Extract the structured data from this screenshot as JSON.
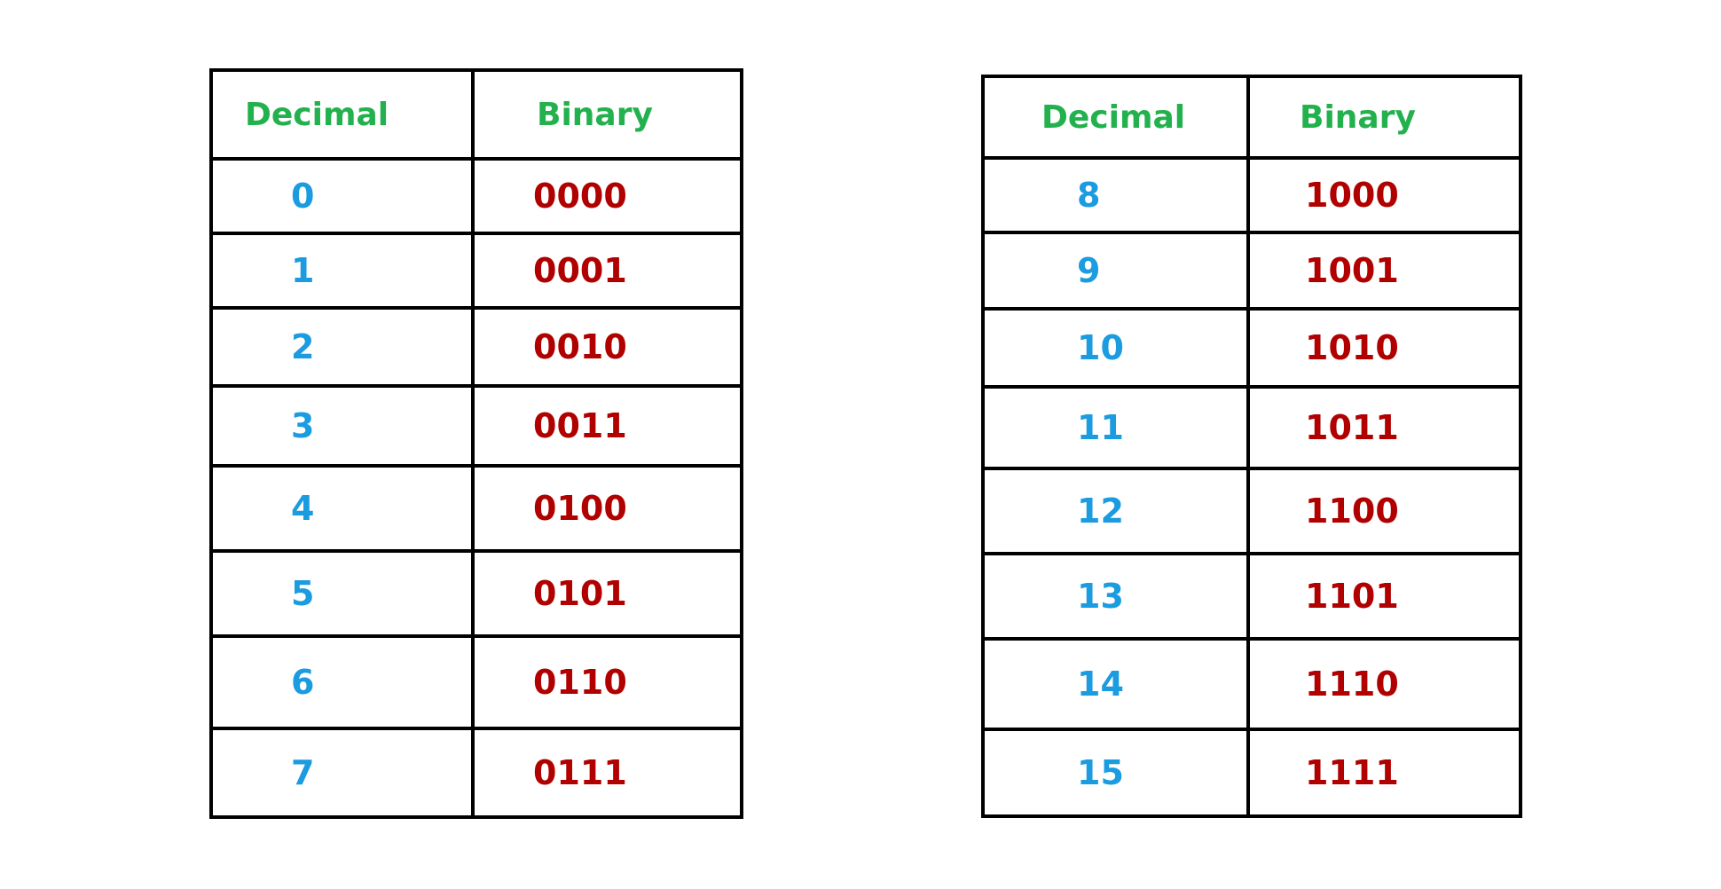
{
  "tables": [
    {
      "headers": {
        "decimal": "Decimal",
        "binary": "Binary"
      },
      "rows": [
        {
          "decimal": "0",
          "binary": "0000"
        },
        {
          "decimal": "1",
          "binary": "0001"
        },
        {
          "decimal": "2",
          "binary": "0010"
        },
        {
          "decimal": "3",
          "binary": "0011"
        },
        {
          "decimal": "4",
          "binary": "0100"
        },
        {
          "decimal": "5",
          "binary": "0101"
        },
        {
          "decimal": "6",
          "binary": "0110"
        },
        {
          "decimal": "7",
          "binary": "0111"
        }
      ]
    },
    {
      "headers": {
        "decimal": "Decimal",
        "binary": "Binary"
      },
      "rows": [
        {
          "decimal": "8",
          "binary": "1000"
        },
        {
          "decimal": "9",
          "binary": "1001"
        },
        {
          "decimal": "10",
          "binary": "1010"
        },
        {
          "decimal": "11",
          "binary": "1011"
        },
        {
          "decimal": "12",
          "binary": "1100"
        },
        {
          "decimal": "13",
          "binary": "1101"
        },
        {
          "decimal": "14",
          "binary": "1110"
        },
        {
          "decimal": "15",
          "binary": "1111"
        }
      ]
    }
  ],
  "colors": {
    "header": "#22b14c",
    "decimal": "#1b9be0",
    "binary": "#b00000",
    "border": "#000000"
  }
}
